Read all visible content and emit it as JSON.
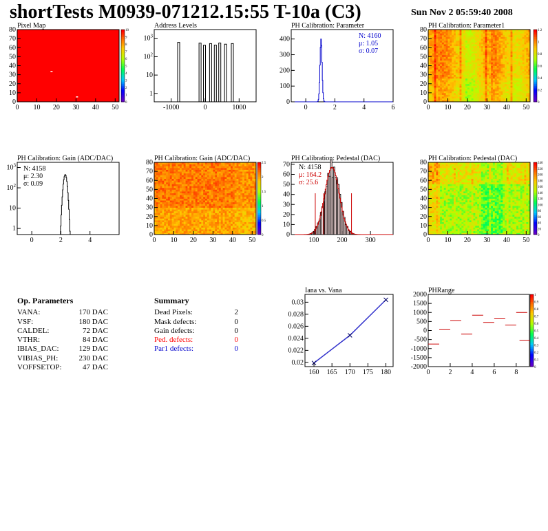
{
  "header": {
    "title": "shortTests M0939-071212.15:55 T-10a (C3)",
    "date": "Sun Nov  2 05:59:40 2008"
  },
  "colors": {
    "frame": "#000000",
    "red": "#ff0000",
    "blue": "#0000cc",
    "fit_blue": "#3333cc"
  },
  "chart_data": [
    {
      "id": "pixel_map",
      "title": "Pixel Map",
      "type": "heatmap",
      "x_ticks": [
        "0",
        "10",
        "20",
        "30",
        "40",
        "50"
      ],
      "y_ticks": [
        "0",
        "10",
        "20",
        "30",
        "40",
        "50",
        "60",
        "70",
        "80"
      ],
      "palette_ticks": [
        "0",
        "1",
        "2",
        "3",
        "4",
        "5",
        "6",
        "7",
        "8",
        "9",
        "10"
      ],
      "fill": "#ff0000",
      "note": "uniform maximum (10) except two pixels",
      "dead_pixels": [
        [
          17,
          34
        ],
        [
          30,
          6
        ]
      ]
    },
    {
      "id": "address_levels",
      "title": "Address Levels",
      "type": "bar",
      "log_y": true,
      "x_ticks": [
        "-1000",
        "0",
        "1000"
      ],
      "y_ticks": [
        "1",
        "10",
        "10^2",
        "10^3"
      ],
      "xlim": [
        -1500,
        1500
      ],
      "peaks_x": [
        -780,
        -150,
        -20,
        160,
        300,
        430,
        600,
        800
      ],
      "peaks_y": [
        600,
        550,
        420,
        520,
        430,
        560,
        480,
        520
      ]
    },
    {
      "id": "ph_cal_param",
      "title": "PH Calibration: Parameter",
      "type": "bar",
      "x_ticks": [
        "0",
        "2",
        "4",
        "6"
      ],
      "y_ticks": [
        "0",
        "100",
        "200",
        "300",
        "400"
      ],
      "xlim": [
        -1,
        6
      ],
      "ylim": [
        0,
        460
      ],
      "stats": {
        "n": "N: 4160",
        "mu": "μ: 1.05",
        "sigma": "σ: 0.07"
      },
      "peak": {
        "mean": 1.05,
        "sigma": 0.07,
        "max": 400
      }
    },
    {
      "id": "ph_cal_param1",
      "title": "PH Calibration: Parameter1",
      "type": "heatmap",
      "x_ticks": [
        "0",
        "10",
        "20",
        "30",
        "40",
        "50"
      ],
      "y_ticks": [
        "0",
        "10",
        "20",
        "30",
        "40",
        "50",
        "60",
        "70",
        "80"
      ],
      "palette_ticks": [
        "0",
        "0.2",
        "0.4",
        "0.6",
        "0.8",
        "1",
        "1.2"
      ]
    },
    {
      "id": "ph_gain",
      "title": "PH Calibration: Gain (ADC/DAC)",
      "type": "bar",
      "log_y": true,
      "x_ticks": [
        "0",
        "2",
        "4"
      ],
      "y_ticks": [
        "1",
        "10",
        "10^2",
        "10^3"
      ],
      "xlim": [
        -1,
        6
      ],
      "stats": {
        "n": "N: 4158",
        "mu": "μ: 2.30",
        "sigma": "σ: 0.09"
      },
      "peak": {
        "mean": 2.3,
        "sigma": 0.09,
        "max": 450
      }
    },
    {
      "id": "ph_gain_map",
      "title": "PH Calibration: Gain (ADC/DAC)",
      "type": "heatmap",
      "x_ticks": [
        "0",
        "10",
        "20",
        "30",
        "40",
        "50"
      ],
      "y_ticks": [
        "0",
        "10",
        "20",
        "30",
        "40",
        "50",
        "60",
        "70",
        "80"
      ],
      "palette_ticks": [
        "0",
        "0.5",
        "1",
        "1.5",
        "2",
        "2.5"
      ]
    },
    {
      "id": "ph_pedestal",
      "title": "PH Calibration: Pedestal (DAC)",
      "type": "bar",
      "x_ticks": [
        "100",
        "200",
        "300"
      ],
      "y_ticks": [
        "0",
        "10",
        "20",
        "30",
        "40",
        "50",
        "60",
        "70"
      ],
      "xlim": [
        20,
        380
      ],
      "ylim": [
        0,
        72
      ],
      "stats": {
        "n": "N: 4158",
        "mu": "μ: 164.2",
        "sigma": "σ: 25.6"
      },
      "peak": {
        "mean": 164.2,
        "sigma": 25.6,
        "max": 67
      },
      "cut_lines_x": [
        105,
        135,
        233
      ]
    },
    {
      "id": "ph_pedestal_map",
      "title": "PH Calibration: Pedestal (DAC)",
      "type": "heatmap",
      "x_ticks": [
        "0",
        "10",
        "20",
        "30",
        "40",
        "50"
      ],
      "y_ticks": [
        "0",
        "10",
        "20",
        "30",
        "40",
        "50",
        "60",
        "70",
        "80"
      ],
      "palette_ticks": [
        "0",
        "20",
        "40",
        "60",
        "80",
        "100",
        "120",
        "140",
        "160",
        "180",
        "200",
        "220",
        "240"
      ]
    },
    {
      "id": "iana_vana",
      "title": "Iana vs. Vana",
      "type": "line",
      "x": [
        160,
        170,
        180
      ],
      "y": [
        0.0199,
        0.0245,
        0.0304
      ],
      "x_ticks": [
        "160",
        "165",
        "170",
        "175",
        "180"
      ],
      "y_ticks": [
        "0.02",
        "0.022",
        "0.024",
        "0.026",
        "0.028",
        "0.03"
      ],
      "xlim": [
        157.5,
        182
      ],
      "ylim": [
        0.0193,
        0.0313
      ]
    },
    {
      "id": "phrange",
      "title": "PHRange",
      "type": "scatter",
      "x_ticks": [
        "0",
        "2",
        "4",
        "6",
        "8"
      ],
      "y_ticks": [
        "2000",
        "1500",
        "1000",
        "500",
        "0",
        "-500",
        "-1000",
        "-1500",
        "-2000"
      ],
      "palette_ticks": [
        "0",
        "0.1",
        "0.2",
        "0.3",
        "0.4",
        "0.5",
        "0.6",
        "0.7",
        "0.8",
        "0.9",
        "1"
      ],
      "xlim": [
        0,
        9.2
      ],
      "ylim": [
        -2000,
        2000
      ],
      "segments": [
        {
          "x": 0,
          "y": -750
        },
        {
          "x": 1,
          "y": 50
        },
        {
          "x": 2,
          "y": 550
        },
        {
          "x": 3,
          "y": -200
        },
        {
          "x": 4,
          "y": 850
        },
        {
          "x": 5,
          "y": 450
        },
        {
          "x": 6,
          "y": 650
        },
        {
          "x": 7,
          "y": 300
        },
        {
          "x": 8,
          "y": 1000
        },
        {
          "x": 8.3,
          "y": -550
        }
      ]
    }
  ],
  "op_parameters": {
    "title": "Op. Parameters",
    "rows": [
      {
        "label": "VANA:",
        "value": "170 DAC"
      },
      {
        "label": "VSF:",
        "value": "180 DAC"
      },
      {
        "label": "CALDEL:",
        "value": "72 DAC"
      },
      {
        "label": "VTHR:",
        "value": "84 DAC"
      },
      {
        "label": "IBIAS_DAC:",
        "value": "129 DAC"
      },
      {
        "label": "VIBIAS_PH:",
        "value": "230 DAC"
      },
      {
        "label": "VOFFSETOP:",
        "value": "47 DAC"
      }
    ]
  },
  "summary": {
    "title": "Summary",
    "rows": [
      {
        "label": "Dead Pixels:",
        "value": "2",
        "color": "#000000"
      },
      {
        "label": "Mask defects:",
        "value": "0",
        "color": "#000000"
      },
      {
        "label": "Gain defects:",
        "value": "0",
        "color": "#000000"
      },
      {
        "label": "Ped. defects:",
        "value": "0",
        "color": "#ff0000"
      },
      {
        "label": "Par1 defects:",
        "value": "0",
        "color": "#0000cc"
      }
    ]
  }
}
